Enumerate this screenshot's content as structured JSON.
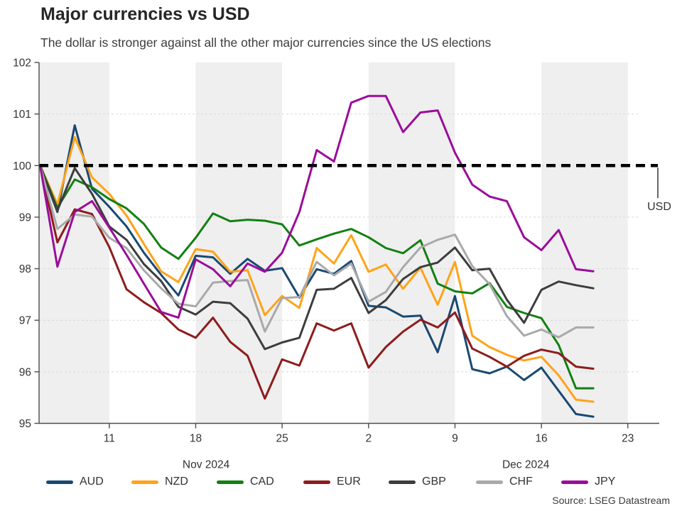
{
  "chart_data": {
    "type": "line",
    "title": "Major currencies vs USD",
    "subtitle": "The dollar is stronger against all the other major currencies since the US elections",
    "source": "Source: LSEG Datastream",
    "baseline": {
      "label": "USD",
      "value": 100,
      "color": "#000000",
      "style": "dashed"
    },
    "y_axis": {
      "min": 95,
      "max": 102,
      "step": 1,
      "tick_labels": [
        "95",
        "96",
        "97",
        "98",
        "99",
        "100",
        "101",
        "102"
      ],
      "grid": "dotted"
    },
    "x_axis": {
      "tick_labels": [
        "11",
        "18",
        "25",
        "2",
        "9",
        "16",
        "23"
      ],
      "tick_indices": [
        4,
        9,
        14,
        19,
        24,
        29,
        34
      ],
      "month_labels": [
        {
          "text": "Nov 2024",
          "index": 9.6
        },
        {
          "text": "Dec 2024",
          "index": 28.1
        }
      ]
    },
    "dates": [
      "Nov 5",
      "Nov 6",
      "Nov 7",
      "Nov 8",
      "Nov 11",
      "Nov 12",
      "Nov 13",
      "Nov 14",
      "Nov 15",
      "Nov 18",
      "Nov 19",
      "Nov 20",
      "Nov 21",
      "Nov 22",
      "Nov 25",
      "Nov 26",
      "Nov 27",
      "Nov 28",
      "Nov 29",
      "Dec 2",
      "Dec 3",
      "Dec 4",
      "Dec 5",
      "Dec 6",
      "Dec 9",
      "Dec 10",
      "Dec 11",
      "Dec 12",
      "Dec 13",
      "Dec 16",
      "Dec 17",
      "Dec 18",
      "Dec 19"
    ],
    "shading": {
      "color": "#efefef",
      "week_spans": [
        [
          0,
          4
        ],
        [
          9,
          14
        ],
        [
          19,
          24
        ],
        [
          29,
          34
        ]
      ]
    },
    "grid_color": "#d9d9d9",
    "axis_color": "#4d4d4d",
    "text_color": "#333333",
    "series": [
      {
        "name": "AUD",
        "color": "#1a4971",
        "values": [
          100,
          99.1,
          100.78,
          99.55,
          99.2,
          98.82,
          98.31,
          97.88,
          97.48,
          98.25,
          98.22,
          97.9,
          98.19,
          97.96,
          98.01,
          97.44,
          97.99,
          97.9,
          98.15,
          97.28,
          97.25,
          97.07,
          97.09,
          96.38,
          97.47,
          96.05,
          95.97,
          96.1,
          95.84,
          96.08,
          95.63,
          95.18,
          95.13
        ]
      },
      {
        "name": "NZD",
        "color": "#ffa319",
        "values": [
          100,
          99.25,
          100.55,
          99.77,
          99.45,
          99.03,
          98.48,
          97.95,
          97.74,
          98.38,
          98.33,
          97.94,
          97.97,
          97.1,
          97.47,
          97.24,
          98.4,
          98.1,
          98.65,
          97.94,
          98.08,
          97.61,
          98.02,
          97.3,
          98.13,
          96.7,
          96.48,
          96.33,
          96.22,
          96.29,
          95.93,
          95.46,
          95.42
        ]
      },
      {
        "name": "CAD",
        "color": "#128012",
        "values": [
          100,
          99.18,
          99.73,
          99.58,
          99.35,
          99.17,
          98.87,
          98.41,
          98.19,
          98.6,
          99.07,
          98.92,
          98.95,
          98.93,
          98.86,
          98.45,
          98.57,
          98.68,
          98.77,
          98.61,
          98.4,
          98.3,
          98.55,
          97.71,
          97.56,
          97.52,
          97.72,
          97.26,
          97.14,
          97.04,
          96.52,
          95.68,
          95.68
        ]
      },
      {
        "name": "EUR",
        "color": "#8e1c1c",
        "values": [
          100,
          98.51,
          99.15,
          99.06,
          98.42,
          97.6,
          97.35,
          97.14,
          96.82,
          96.66,
          97.05,
          96.58,
          96.31,
          95.48,
          96.24,
          96.12,
          96.94,
          96.8,
          96.94,
          96.08,
          96.48,
          96.78,
          97.01,
          96.86,
          97.15,
          96.45,
          96.29,
          96.1,
          96.31,
          96.43,
          96.36,
          96.1,
          96.06
        ]
      },
      {
        "name": "GBP",
        "color": "#3d3d3d",
        "values": [
          100,
          99.13,
          99.95,
          99.45,
          98.82,
          98.56,
          98.09,
          97.76,
          97.26,
          97.11,
          97.36,
          97.33,
          97.03,
          96.44,
          96.57,
          96.66,
          97.59,
          97.61,
          97.82,
          97.14,
          97.39,
          97.8,
          98.03,
          98.12,
          98.41,
          97.97,
          98.0,
          97.4,
          96.95,
          97.59,
          97.75,
          97.68,
          97.62
        ]
      },
      {
        "name": "CHF",
        "color": "#a9a9a9",
        "values": [
          100,
          98.77,
          99.05,
          99.01,
          98.6,
          98.4,
          97.97,
          97.62,
          97.32,
          97.27,
          97.73,
          97.76,
          97.78,
          96.78,
          97.43,
          97.45,
          98.13,
          97.87,
          98.1,
          97.36,
          97.55,
          98.03,
          98.41,
          98.56,
          98.66,
          98.05,
          97.7,
          97.08,
          96.7,
          96.82,
          96.67,
          96.86,
          96.86
        ]
      },
      {
        "name": "JPY",
        "color": "#9a0d9a",
        "values": [
          100,
          98.04,
          99.1,
          99.31,
          98.8,
          98.27,
          97.71,
          97.16,
          97.05,
          98.18,
          97.99,
          97.66,
          98.1,
          97.94,
          98.31,
          99.1,
          100.3,
          100.08,
          101.22,
          101.35,
          101.35,
          100.65,
          101.03,
          101.07,
          100.25,
          99.63,
          99.4,
          99.31,
          98.61,
          98.36,
          98.75,
          97.99,
          97.95
        ]
      }
    ],
    "legend_position": "bottom"
  }
}
